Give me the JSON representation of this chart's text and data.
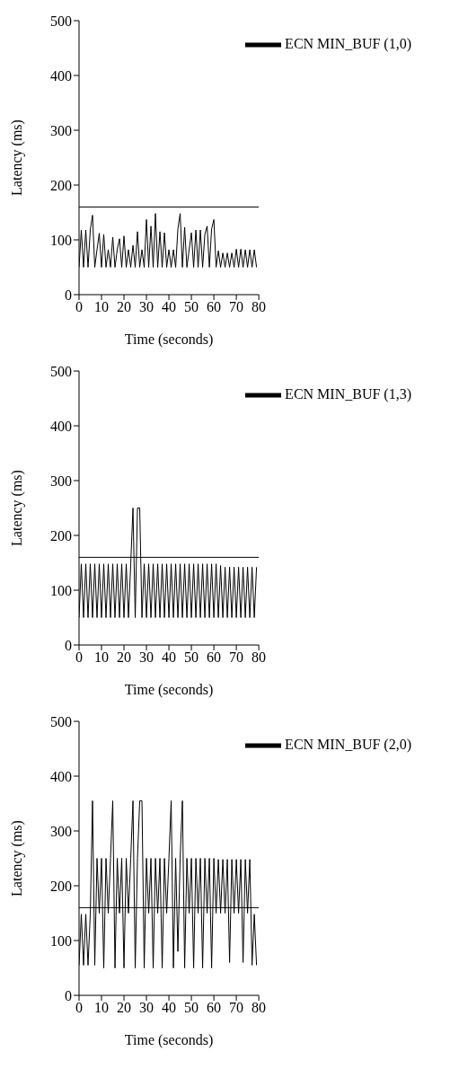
{
  "chart_data": [
    {
      "type": "line",
      "xlabel": "Time (seconds)",
      "ylabel": "Latency (ms)",
      "xlim": [
        0,
        80
      ],
      "ylim": [
        0,
        500
      ],
      "xticks": [
        0,
        10,
        20,
        30,
        40,
        50,
        60,
        70,
        80
      ],
      "yticks": [
        0,
        100,
        200,
        300,
        400,
        500
      ],
      "legend": "top right",
      "ref_lines": [
        {
          "axis": "y",
          "value": 160,
          "color": "#000000"
        }
      ],
      "series": [
        {
          "name": "ECN  MIN_BUF (1,0)",
          "color": "#000000",
          "x": [
            0,
            1,
            2,
            3,
            4,
            5,
            6,
            7,
            8,
            9,
            10,
            11,
            12,
            13,
            14,
            15,
            16,
            17,
            18,
            19,
            20,
            21,
            22,
            23,
            24,
            25,
            26,
            27,
            28,
            29,
            30,
            31,
            32,
            33,
            34,
            35,
            36,
            37,
            38,
            39,
            40,
            41,
            42,
            43,
            44,
            45,
            46,
            47,
            48,
            49,
            50,
            51,
            52,
            53,
            54,
            55,
            56,
            57,
            58,
            59,
            60,
            61,
            62,
            63,
            64,
            65,
            66,
            67,
            68,
            69,
            70,
            71,
            72,
            73,
            74,
            75,
            76,
            77,
            78,
            79
          ],
          "values": [
            50,
            118,
            50,
            118,
            50,
            118,
            145,
            50,
            82,
            112,
            50,
            110,
            50,
            82,
            50,
            105,
            50,
            82,
            102,
            50,
            107,
            50,
            82,
            50,
            90,
            50,
            115,
            50,
            82,
            50,
            137,
            50,
            125,
            50,
            148,
            50,
            115,
            50,
            113,
            50,
            82,
            50,
            82,
            50,
            120,
            148,
            50,
            123,
            50,
            82,
            113,
            50,
            118,
            50,
            118,
            50,
            110,
            125,
            50,
            120,
            137,
            50,
            80,
            50,
            76,
            50,
            76,
            50,
            76,
            50,
            83,
            50,
            83,
            50,
            82,
            50,
            82,
            50,
            82,
            50
          ]
        }
      ]
    },
    {
      "type": "line",
      "xlabel": "Time (seconds)",
      "ylabel": "Latency (ms)",
      "xlim": [
        0,
        80
      ],
      "ylim": [
        0,
        500
      ],
      "xticks": [
        0,
        10,
        20,
        30,
        40,
        50,
        60,
        70,
        80
      ],
      "yticks": [
        0,
        100,
        200,
        300,
        400,
        500
      ],
      "legend": "top right",
      "ref_lines": [
        {
          "axis": "y",
          "value": 160,
          "color": "#000000"
        }
      ],
      "series": [
        {
          "name": "ECN  MIN_BUF (1,3)",
          "color": "#000000",
          "x": [
            0,
            1,
            2,
            3,
            4,
            5,
            6,
            7,
            8,
            9,
            10,
            11,
            12,
            13,
            14,
            15,
            16,
            17,
            18,
            19,
            20,
            21,
            22,
            23,
            24,
            25,
            26,
            27,
            28,
            29,
            30,
            31,
            32,
            33,
            34,
            35,
            36,
            37,
            38,
            39,
            40,
            41,
            42,
            43,
            44,
            45,
            46,
            47,
            48,
            49,
            50,
            51,
            52,
            53,
            54,
            55,
            56,
            57,
            58,
            59,
            60,
            61,
            62,
            63,
            64,
            65,
            66,
            67,
            68,
            69,
            70,
            71,
            72,
            73,
            74,
            75,
            76,
            77,
            78,
            79
          ],
          "values": [
            50,
            148,
            50,
            148,
            50,
            148,
            50,
            148,
            50,
            148,
            50,
            148,
            50,
            148,
            50,
            148,
            50,
            148,
            50,
            148,
            50,
            148,
            50,
            148,
            250,
            50,
            250,
            250,
            50,
            148,
            50,
            148,
            50,
            148,
            50,
            148,
            50,
            148,
            50,
            148,
            50,
            148,
            50,
            148,
            50,
            148,
            50,
            148,
            50,
            148,
            50,
            148,
            50,
            148,
            50,
            148,
            50,
            148,
            50,
            148,
            50,
            148,
            50,
            145,
            50,
            142,
            50,
            142,
            50,
            142,
            50,
            142,
            50,
            142,
            50,
            142,
            50,
            142,
            50,
            142
          ]
        }
      ]
    },
    {
      "type": "line",
      "xlabel": "Time (seconds)",
      "ylabel": "Latency (ms)",
      "xlim": [
        0,
        80
      ],
      "ylim": [
        0,
        500
      ],
      "xticks": [
        0,
        10,
        20,
        30,
        40,
        50,
        60,
        70,
        80
      ],
      "yticks": [
        0,
        100,
        200,
        300,
        400,
        500
      ],
      "legend": "top right",
      "ref_lines": [
        {
          "axis": "y",
          "value": 160,
          "color": "#000000"
        }
      ],
      "series": [
        {
          "name": "ECN  MIN_BUF (2,0)",
          "color": "#000000",
          "x": [
            0,
            1,
            2,
            3,
            4,
            5,
            6,
            7,
            8,
            9,
            10,
            11,
            12,
            13,
            14,
            15,
            16,
            17,
            18,
            19,
            20,
            21,
            22,
            23,
            24,
            25,
            26,
            27,
            28,
            29,
            30,
            31,
            32,
            33,
            34,
            35,
            36,
            37,
            38,
            39,
            40,
            41,
            42,
            43,
            44,
            45,
            46,
            47,
            48,
            49,
            50,
            51,
            52,
            53,
            54,
            55,
            56,
            57,
            58,
            59,
            60,
            61,
            62,
            63,
            64,
            65,
            66,
            67,
            68,
            69,
            70,
            71,
            72,
            73,
            74,
            75,
            76,
            77,
            78,
            79
          ],
          "values": [
            55,
            148,
            55,
            148,
            55,
            148,
            355,
            55,
            250,
            150,
            250,
            50,
            250,
            150,
            250,
            355,
            50,
            250,
            150,
            250,
            50,
            250,
            150,
            250,
            355,
            50,
            250,
            355,
            355,
            50,
            250,
            150,
            250,
            50,
            250,
            150,
            250,
            50,
            250,
            150,
            250,
            355,
            50,
            250,
            80,
            250,
            355,
            50,
            250,
            150,
            250,
            50,
            250,
            150,
            250,
            50,
            250,
            150,
            250,
            50,
            250,
            150,
            248,
            150,
            248,
            150,
            248,
            60,
            248,
            150,
            248,
            150,
            248,
            60,
            248,
            150,
            248,
            55,
            148,
            55
          ]
        }
      ]
    }
  ]
}
